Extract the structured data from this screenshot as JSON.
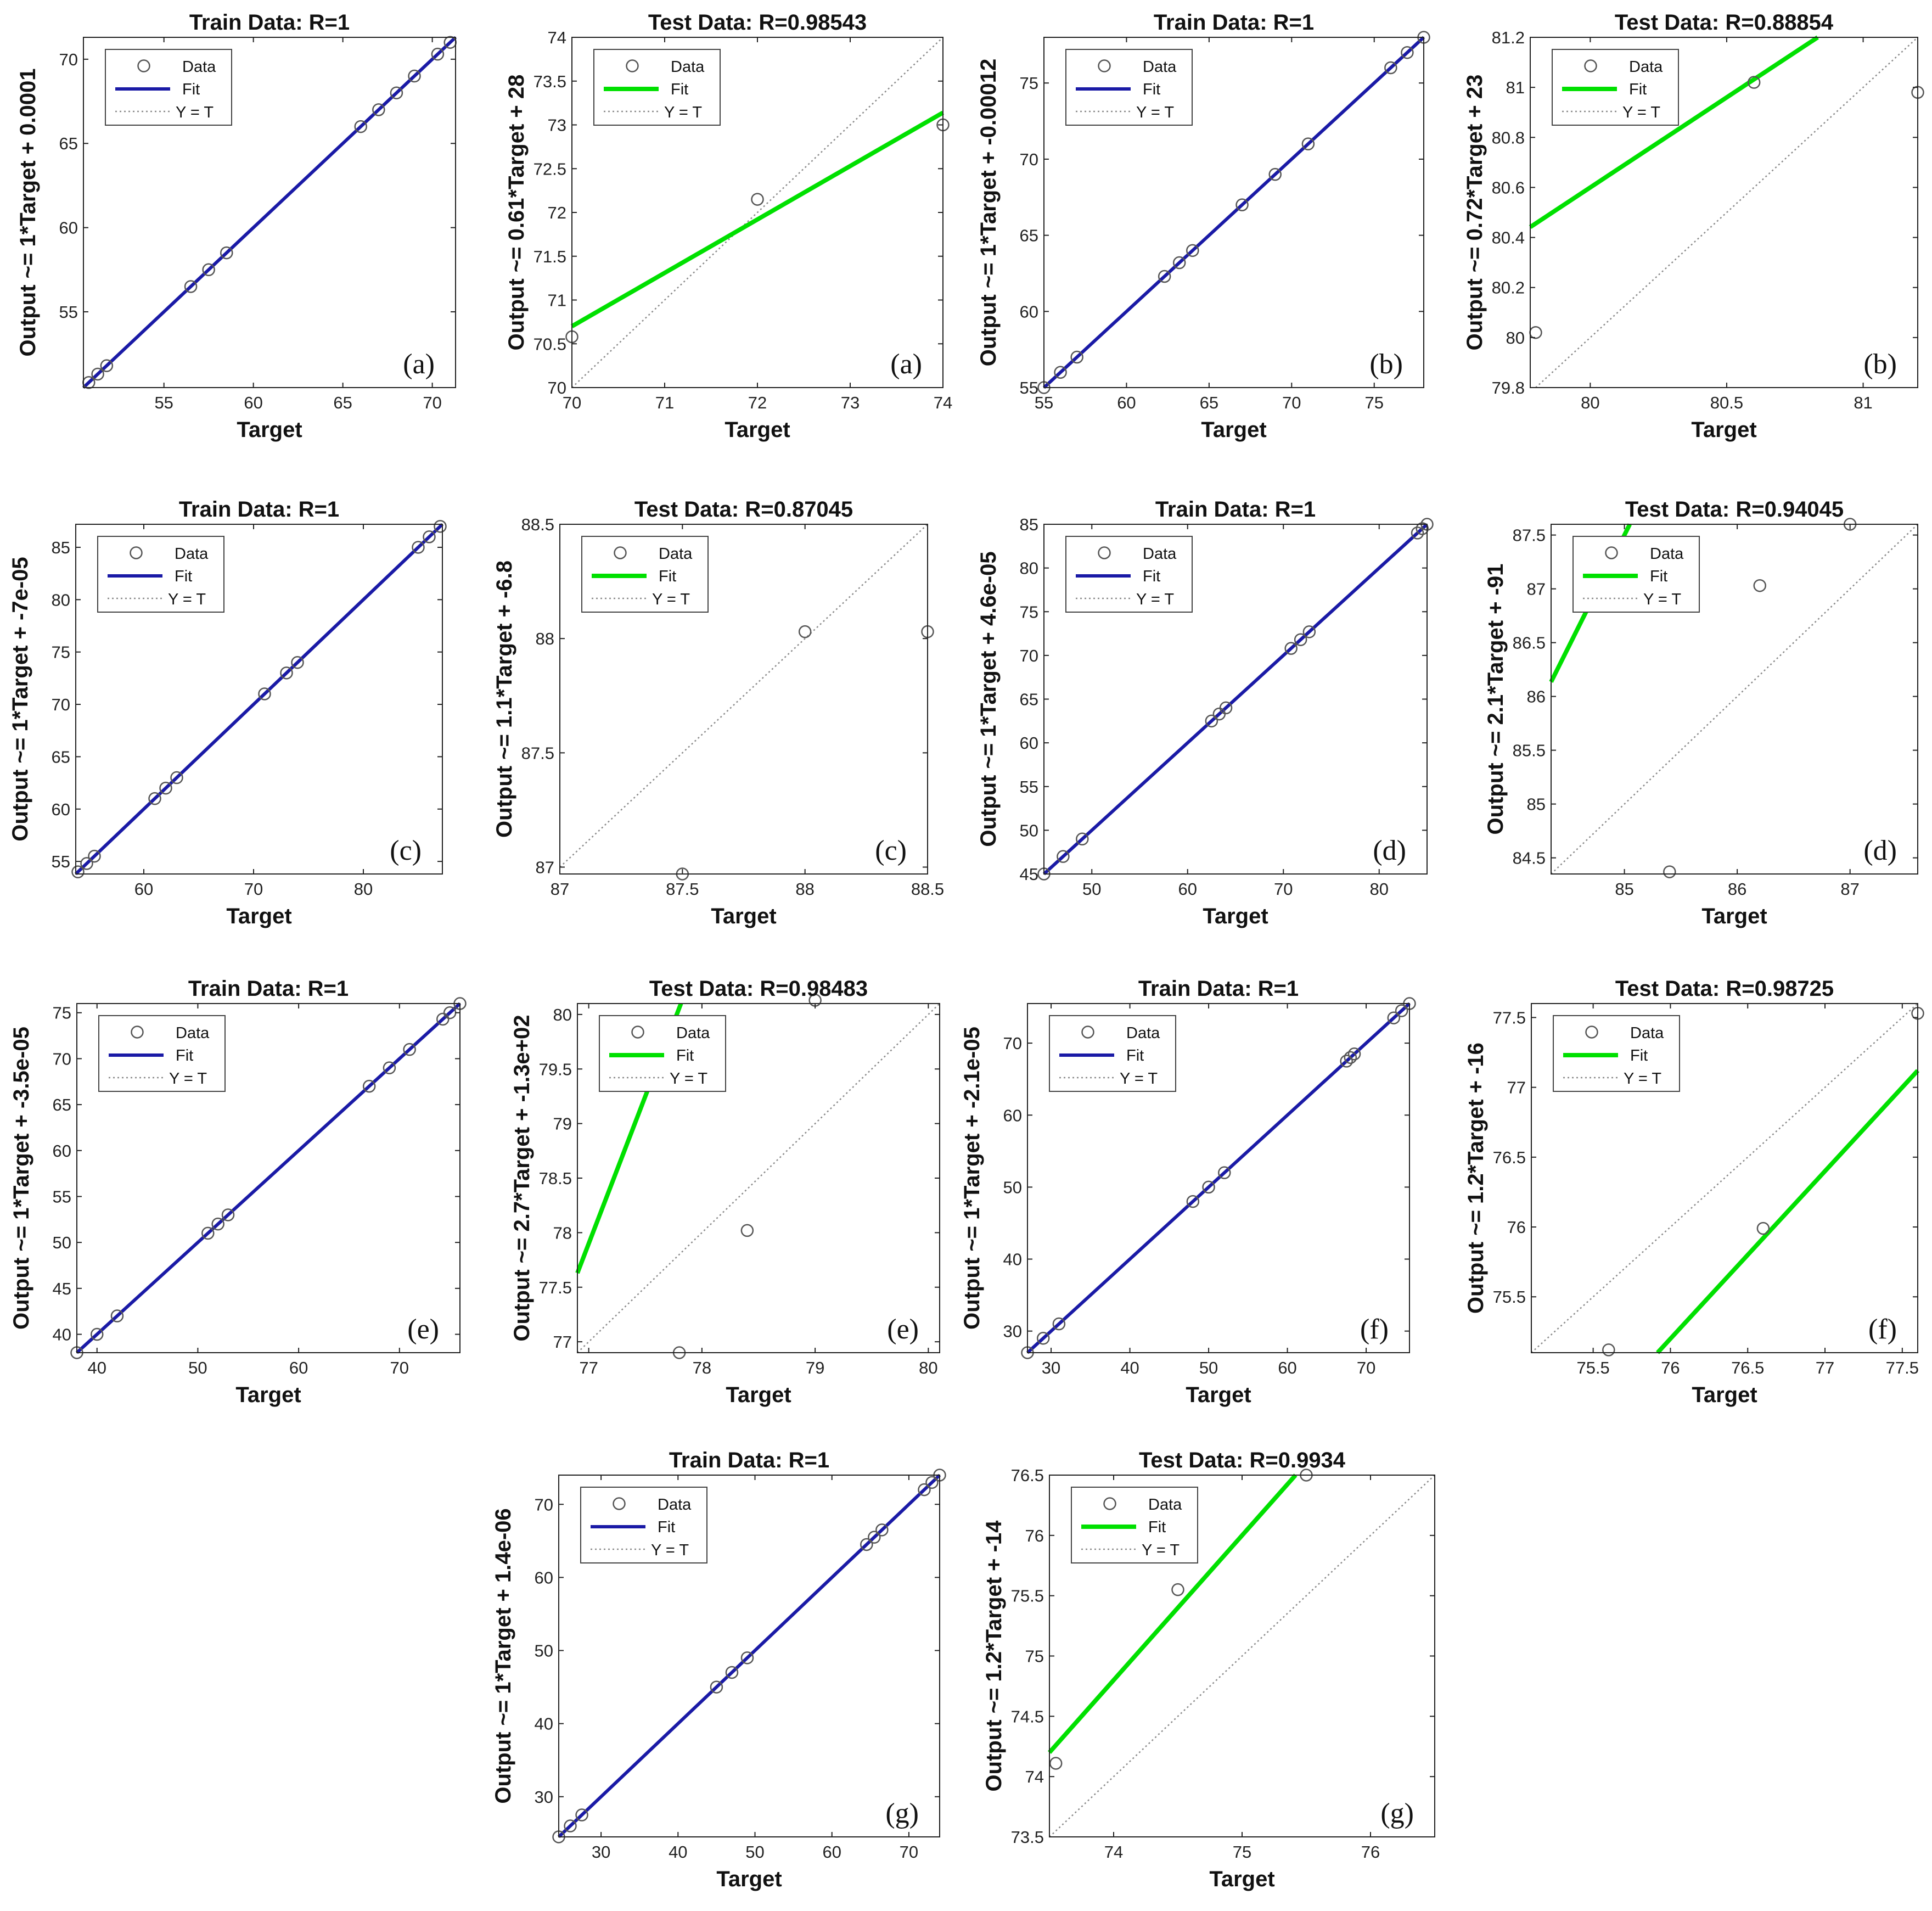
{
  "figure": {
    "x_label": "Target",
    "legend_labels": [
      "Data",
      "Fit",
      "Y = T"
    ],
    "colors": {
      "train_fit": "#1a1aa6",
      "test_fit": "#00e000",
      "identity": "#8a8a8a",
      "marker": "#555555",
      "axes": "#222222"
    }
  },
  "chart_data": [
    {
      "type": "scatter",
      "title": "Train Data: R=1",
      "ylabel": "Output ~= 1*Target + 0.0001",
      "panel_label": "(a)",
      "fit_kind": "train",
      "xlim": [
        50.5,
        71.3
      ],
      "ylim": [
        50.5,
        71.3
      ],
      "xticks": [
        55,
        60,
        65,
        70
      ],
      "yticks": [
        55,
        60,
        65,
        70
      ],
      "points": [
        [
          50.8,
          50.8
        ],
        [
          51.3,
          51.3
        ],
        [
          51.8,
          51.8
        ],
        [
          56.5,
          56.5
        ],
        [
          57.5,
          57.5
        ],
        [
          58.5,
          58.5
        ],
        [
          66,
          66
        ],
        [
          67,
          67
        ],
        [
          68,
          68
        ],
        [
          69,
          69
        ],
        [
          70.3,
          70.3
        ],
        [
          71,
          71
        ]
      ],
      "fit": {
        "slope": 1,
        "intercept": 0.0001
      }
    },
    {
      "type": "scatter",
      "title": "Test Data: R=0.98543",
      "ylabel": "Output ~= 0.61*Target + 28",
      "panel_label": "(a)",
      "fit_kind": "test",
      "xlim": [
        70,
        74
      ],
      "ylim": [
        70,
        74
      ],
      "xticks": [
        70,
        71,
        72,
        73,
        74
      ],
      "yticks": [
        70,
        70.5,
        71,
        71.5,
        72,
        72.5,
        73,
        73.5,
        74
      ],
      "points": [
        [
          70,
          70.58
        ],
        [
          72,
          72.15
        ],
        [
          74,
          73
        ]
      ],
      "fit": {
        "slope": 0.61,
        "intercept": 28
      }
    },
    {
      "type": "scatter",
      "title": "Train Data: R=1",
      "ylabel": "Output ~= 1*Target + -0.00012",
      "panel_label": "(b)",
      "fit_kind": "train",
      "xlim": [
        55,
        78
      ],
      "ylim": [
        55,
        78
      ],
      "xticks": [
        55,
        60,
        65,
        70,
        75
      ],
      "yticks": [
        55,
        60,
        65,
        70,
        75
      ],
      "points": [
        [
          55,
          55
        ],
        [
          56,
          56
        ],
        [
          57,
          57
        ],
        [
          62.3,
          62.3
        ],
        [
          63.2,
          63.2
        ],
        [
          64,
          64
        ],
        [
          67,
          67
        ],
        [
          69,
          69
        ],
        [
          71,
          71
        ],
        [
          76,
          76
        ],
        [
          77,
          77
        ],
        [
          78,
          78
        ]
      ],
      "fit": {
        "slope": 1,
        "intercept": -0.00012
      }
    },
    {
      "type": "scatter",
      "title": "Test Data: R=0.88854",
      "ylabel": "Output ~= 0.72*Target + 23",
      "panel_label": "(b)",
      "fit_kind": "test",
      "xlim": [
        79.78,
        81.2
      ],
      "ylim": [
        79.8,
        81.2
      ],
      "xticks": [
        80,
        80.5,
        81
      ],
      "yticks": [
        79.8,
        80,
        80.2,
        80.4,
        80.6,
        80.8,
        81,
        81.2
      ],
      "points": [
        [
          79.8,
          80.02
        ],
        [
          80.6,
          81.02
        ],
        [
          81.2,
          80.98
        ]
      ],
      "fit": {
        "slope": 0.72,
        "intercept": 23
      }
    },
    {
      "type": "scatter",
      "title": "Train Data: R=1",
      "ylabel": "Output ~= 1*Target + -7e-05",
      "panel_label": "(c)",
      "fit_kind": "train",
      "xlim": [
        53.8,
        87.2
      ],
      "ylim": [
        53.8,
        87.2
      ],
      "xticks": [
        60,
        70,
        80
      ],
      "yticks": [
        55,
        60,
        65,
        70,
        75,
        80,
        85
      ],
      "points": [
        [
          54,
          54
        ],
        [
          54.8,
          54.8
        ],
        [
          55.5,
          55.5
        ],
        [
          61,
          61
        ],
        [
          62,
          62
        ],
        [
          63,
          63
        ],
        [
          71,
          71
        ],
        [
          73,
          73
        ],
        [
          74,
          74
        ],
        [
          85,
          85
        ],
        [
          86,
          86
        ],
        [
          87,
          87
        ]
      ],
      "fit": {
        "slope": 1,
        "intercept": -7e-05
      }
    },
    {
      "type": "scatter",
      "title": "Test Data: R=0.87045",
      "ylabel": "Output ~= 1.1*Target + -6.8",
      "panel_label": "(c)",
      "fit_kind": "test",
      "xlim": [
        87,
        88.5
      ],
      "ylim": [
        86.97,
        88.5
      ],
      "xticks": [
        87,
        87.5,
        88,
        88.5
      ],
      "yticks": [
        87,
        87.5,
        88,
        88.5
      ],
      "points": [
        [
          87.5,
          86.97
        ],
        [
          88,
          88.03
        ],
        [
          88.5,
          88.03
        ]
      ],
      "fit": {
        "slope": 1.1,
        "intercept": -6.8
      }
    },
    {
      "type": "scatter",
      "title": "Train Data: R=1",
      "ylabel": "Output ~= 1*Target + 4.6e-05",
      "panel_label": "(d)",
      "fit_kind": "train",
      "xlim": [
        45,
        85
      ],
      "ylim": [
        45,
        85
      ],
      "xticks": [
        50,
        60,
        70,
        80
      ],
      "yticks": [
        45,
        50,
        55,
        60,
        65,
        70,
        75,
        80,
        85
      ],
      "points": [
        [
          45,
          45
        ],
        [
          47,
          47
        ],
        [
          49,
          49
        ],
        [
          62.5,
          62.5
        ],
        [
          63.3,
          63.3
        ],
        [
          64,
          64
        ],
        [
          70.8,
          70.8
        ],
        [
          71.8,
          71.8
        ],
        [
          72.7,
          72.7
        ],
        [
          84,
          84
        ],
        [
          84.5,
          84.5
        ],
        [
          85,
          85
        ]
      ],
      "fit": {
        "slope": 1,
        "intercept": 4.6e-05
      }
    },
    {
      "type": "scatter",
      "title": "Test Data: R=0.94045",
      "ylabel": "Output ~= 2.1*Target + -91",
      "panel_label": "(d)",
      "fit_kind": "test",
      "xlim": [
        84.35,
        87.6
      ],
      "ylim": [
        84.35,
        87.6
      ],
      "xticks": [
        85,
        86,
        87
      ],
      "yticks": [
        84.5,
        85,
        85.5,
        86,
        86.5,
        87,
        87.5
      ],
      "points": [
        [
          85.4,
          84.37
        ],
        [
          86.2,
          87.03
        ],
        [
          87,
          87.6
        ]
      ],
      "fit": {
        "slope": 2.1,
        "intercept": -91
      }
    },
    {
      "type": "scatter",
      "title": "Train Data: R=1",
      "ylabel": "Output ~= 1*Target + -3.5e-05",
      "panel_label": "(e)",
      "fit_kind": "train",
      "xlim": [
        38,
        76
      ],
      "ylim": [
        38,
        76
      ],
      "xticks": [
        40,
        50,
        60,
        70
      ],
      "yticks": [
        40,
        45,
        50,
        55,
        60,
        65,
        70,
        75
      ],
      "points": [
        [
          38,
          38
        ],
        [
          40,
          40
        ],
        [
          42,
          42
        ],
        [
          51,
          51
        ],
        [
          52,
          52
        ],
        [
          53,
          53
        ],
        [
          67,
          67
        ],
        [
          69,
          69
        ],
        [
          71,
          71
        ],
        [
          74.3,
          74.3
        ],
        [
          75,
          75
        ],
        [
          76,
          76
        ]
      ],
      "fit": {
        "slope": 1,
        "intercept": -3.5e-05
      }
    },
    {
      "type": "scatter",
      "title": "Test Data: R=0.98483",
      "ylabel": "Output ~= 2.7*Target + -1.3e+02",
      "panel_label": "(e)",
      "fit_kind": "test",
      "xlim": [
        76.9,
        80.1
      ],
      "ylim": [
        76.9,
        80.1
      ],
      "xticks": [
        77,
        78,
        79,
        80
      ],
      "yticks": [
        77,
        77.5,
        78,
        78.5,
        79,
        79.5,
        80
      ],
      "points": [
        [
          77.8,
          76.9
        ],
        [
          78.4,
          78.02
        ],
        [
          79,
          80.13
        ]
      ],
      "fit": {
        "slope": 2.7,
        "intercept": -130
      }
    },
    {
      "type": "scatter",
      "title": "Train Data: R=1",
      "ylabel": "Output ~= 1*Target + -2.1e-05",
      "panel_label": "(f)",
      "fit_kind": "train",
      "xlim": [
        27,
        75.5
      ],
      "ylim": [
        27,
        75.5
      ],
      "xticks": [
        30,
        40,
        50,
        60,
        70
      ],
      "yticks": [
        30,
        40,
        50,
        60,
        70
      ],
      "points": [
        [
          27,
          27
        ],
        [
          29,
          29
        ],
        [
          31,
          31
        ],
        [
          48,
          48
        ],
        [
          50,
          50
        ],
        [
          52,
          52
        ],
        [
          67.5,
          67.5
        ],
        [
          68,
          68
        ],
        [
          68.5,
          68.5
        ],
        [
          73.5,
          73.5
        ],
        [
          74.5,
          74.5
        ],
        [
          75.5,
          75.5
        ]
      ],
      "fit": {
        "slope": 1,
        "intercept": -2.1e-05
      }
    },
    {
      "type": "scatter",
      "title": "Test Data: R=0.98725",
      "ylabel": "Output ~= 1.2*Target + -16",
      "panel_label": "(f)",
      "fit_kind": "test",
      "xlim": [
        75.1,
        77.6
      ],
      "ylim": [
        75.1,
        77.6
      ],
      "xticks": [
        75.5,
        76,
        76.5,
        77,
        77.5
      ],
      "yticks": [
        75.5,
        76,
        76.5,
        77,
        77.5
      ],
      "points": [
        [
          75.6,
          75.12
        ],
        [
          76.6,
          75.99
        ],
        [
          77.6,
          77.53
        ]
      ],
      "fit": {
        "slope": 1.2,
        "intercept": -16
      }
    },
    {
      "type": "scatter",
      "title": "Train Data: R=1",
      "ylabel": "Output ~= 1*Target + 1.4e-06",
      "panel_label": "(g)",
      "fit_kind": "train",
      "xlim": [
        24.5,
        74
      ],
      "ylim": [
        24.5,
        74
      ],
      "xticks": [
        30,
        40,
        50,
        60,
        70
      ],
      "yticks": [
        30,
        40,
        50,
        60,
        70
      ],
      "points": [
        [
          24.5,
          24.5
        ],
        [
          26,
          26
        ],
        [
          27.5,
          27.5
        ],
        [
          45,
          45
        ],
        [
          47,
          47
        ],
        [
          49,
          49
        ],
        [
          64.5,
          64.5
        ],
        [
          65.5,
          65.5
        ],
        [
          66.5,
          66.5
        ],
        [
          72,
          72
        ],
        [
          73,
          73
        ],
        [
          74,
          74
        ]
      ],
      "fit": {
        "slope": 1,
        "intercept": 1.4e-06
      }
    },
    {
      "type": "scatter",
      "title": "Test Data: R=0.9934",
      "ylabel": "Output ~= 1.2*Target + -14",
      "panel_label": "(g)",
      "fit_kind": "test",
      "xlim": [
        73.5,
        76.5
      ],
      "ylim": [
        73.5,
        76.5
      ],
      "xticks": [
        74,
        75,
        76
      ],
      "yticks": [
        73.5,
        74,
        74.5,
        75,
        75.5,
        76,
        76.5
      ],
      "points": [
        [
          73.55,
          74.11
        ],
        [
          74.5,
          75.55
        ],
        [
          75.5,
          76.5
        ]
      ],
      "fit": {
        "slope": 1.2,
        "intercept": -14
      }
    }
  ]
}
